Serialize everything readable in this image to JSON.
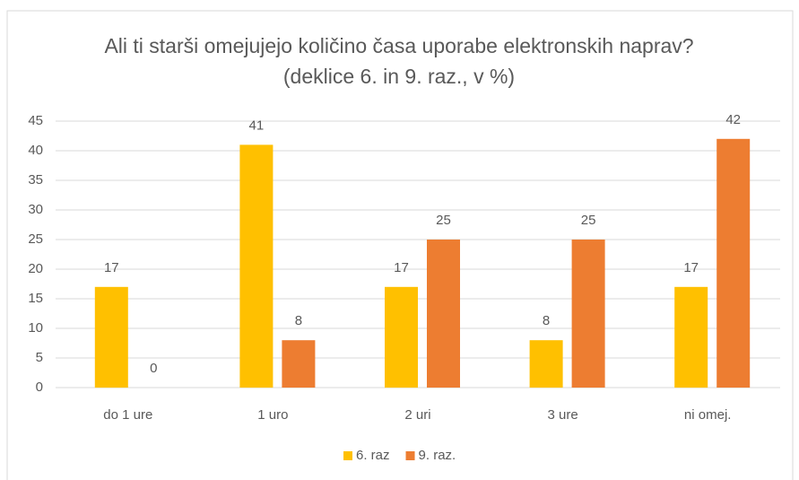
{
  "chart_data": {
    "type": "bar",
    "title": "Ali ti starši omejujejo količino časa uporabe elektronskih naprav? (deklice 6. in 9. raz., v %)",
    "categories": [
      "do 1 ure",
      "1 uro",
      "2 uri",
      "3 ure",
      "ni omej."
    ],
    "series": [
      {
        "name": "6. raz",
        "color": "#FFC000",
        "values": [
          17,
          41,
          17,
          8,
          17
        ]
      },
      {
        "name": "9. raz.",
        "color": "#ED7D31",
        "values": [
          0,
          8,
          25,
          25,
          42
        ]
      }
    ],
    "ylim": [
      0,
      45
    ],
    "yticks": [
      0,
      5,
      10,
      15,
      20,
      25,
      30,
      35,
      40,
      45
    ],
    "grid": true,
    "legend": "bottom"
  }
}
